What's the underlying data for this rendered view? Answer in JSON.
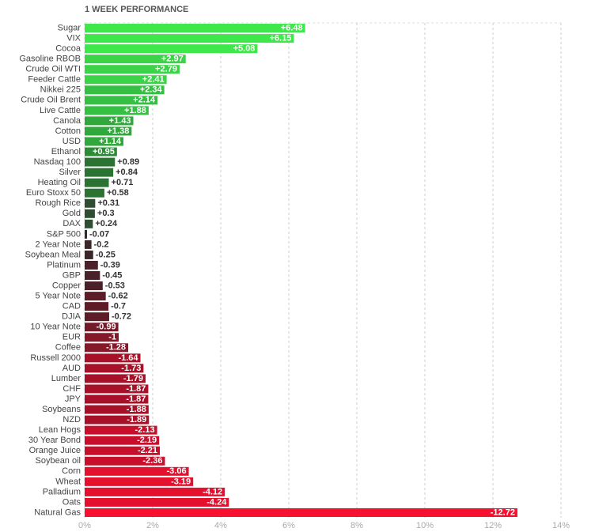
{
  "chart_data": {
    "type": "hbar",
    "title": "1 WEEK PERFORMANCE",
    "categories": [
      "Sugar",
      "VIX",
      "Cocoa",
      "Gasoline RBOB",
      "Crude Oil WTI",
      "Feeder Cattle",
      "Nikkei 225",
      "Crude Oil Brent",
      "Live Cattle",
      "Canola",
      "Cotton",
      "USD",
      "Ethanol",
      "Nasdaq 100",
      "Silver",
      "Heating Oil",
      "Euro Stoxx 50",
      "Rough Rice",
      "Gold",
      "DAX",
      "S&P 500",
      "2 Year Note",
      "Soybean Meal",
      "Platinum",
      "GBP",
      "Copper",
      "5 Year Note",
      "CAD",
      "DJIA",
      "10 Year Note",
      "EUR",
      "Coffee",
      "Russell 2000",
      "AUD",
      "Lumber",
      "CHF",
      "JPY",
      "Soybeans",
      "NZD",
      "Lean Hogs",
      "30 Year Bond",
      "Orange Juice",
      "Soybean oil",
      "Corn",
      "Wheat",
      "Palladium",
      "Oats",
      "Natural Gas"
    ],
    "values": [
      6.48,
      6.15,
      5.08,
      2.97,
      2.79,
      2.41,
      2.34,
      2.14,
      1.88,
      1.43,
      1.38,
      1.14,
      0.95,
      0.89,
      0.84,
      0.71,
      0.58,
      0.31,
      0.3,
      0.24,
      -0.07,
      -0.2,
      -0.25,
      -0.39,
      -0.45,
      -0.53,
      -0.62,
      -0.7,
      -0.72,
      -0.99,
      -1,
      -1.28,
      -1.64,
      -1.73,
      -1.79,
      -1.87,
      -1.87,
      -1.88,
      -1.89,
      -2.13,
      -2.19,
      -2.21,
      -2.36,
      -3.06,
      -3.19,
      -4.12,
      -4.24,
      -12.72
    ],
    "value_labels": [
      "+6.48",
      "+6.15",
      "+5.08",
      "+2.97",
      "+2.79",
      "+2.41",
      "+2.34",
      "+2.14",
      "+1.88",
      "+1.43",
      "+1.38",
      "+1.14",
      "+0.95",
      "+0.89",
      "+0.84",
      "+0.71",
      "+0.58",
      "+0.31",
      "+0.3",
      "+0.24",
      "-0.07",
      "-0.2",
      "-0.25",
      "-0.39",
      "-0.45",
      "-0.53",
      "-0.62",
      "-0.7",
      "-0.72",
      "-0.99",
      "-1",
      "-1.28",
      "-1.64",
      "-1.73",
      "-1.79",
      "-1.87",
      "-1.87",
      "-1.88",
      "-1.89",
      "-2.13",
      "-2.19",
      "-2.21",
      "-2.36",
      "-3.06",
      "-3.19",
      "-4.12",
      "-4.24",
      "-12.72"
    ],
    "colors": [
      "#3ee84a",
      "#3ee84a",
      "#3ee84a",
      "#3bd448",
      "#3bd448",
      "#3bd448",
      "#36c043",
      "#36c043",
      "#36c043",
      "#30a83b",
      "#30a83b",
      "#30a83b",
      "#2b8c35",
      "#2c7233",
      "#2c7233",
      "#2c7233",
      "#2c7233",
      "#2e4e31",
      "#2e4e31",
      "#2e4e31",
      "#2e2e2e",
      "#3b2629",
      "#3b2629",
      "#4a2129",
      "#4a2129",
      "#4a2129",
      "#5e1c27",
      "#5e1c27",
      "#5e1c27",
      "#731a28",
      "#851829",
      "#851829",
      "#a61129",
      "#a61129",
      "#a61129",
      "#a61129",
      "#a61129",
      "#a61129",
      "#a61129",
      "#c70f2c",
      "#c70f2c",
      "#c70f2c",
      "#c70f2c",
      "#e3102e",
      "#e3102e",
      "#e3102e",
      "#e3102e",
      "#f5112f"
    ],
    "xlim": [
      0,
      14
    ],
    "xticks": [
      {
        "value": 0,
        "label": "0%"
      },
      {
        "value": 2,
        "label": "2%"
      },
      {
        "value": 4,
        "label": "4%"
      },
      {
        "value": 6,
        "label": "6%"
      },
      {
        "value": 8,
        "label": "8%"
      },
      {
        "value": 10,
        "label": "10%"
      },
      {
        "value": 12,
        "label": "12%"
      },
      {
        "value": 14,
        "label": "14%"
      }
    ],
    "grid": true
  }
}
